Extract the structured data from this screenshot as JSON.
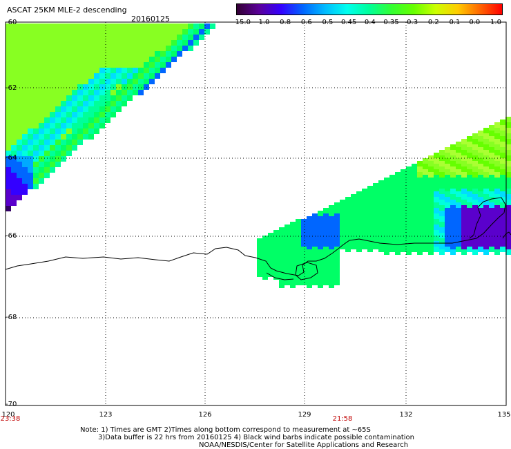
{
  "header": {
    "title": "ASCAT 25KM MLE-2 descending",
    "date": "20160125"
  },
  "colorbar": {
    "labels": [
      "-15.0",
      "-1.0",
      "-0.8",
      "-0.6",
      "-0.5",
      "-0.45",
      "-0.4",
      "-0.35",
      "-0.3",
      "-0.2",
      "-0.1",
      "0.0",
      "1.0"
    ],
    "colors": [
      "#330033",
      "#5a0099",
      "#3300ff",
      "#0066ff",
      "#00bbff",
      "#00ffee",
      "#00ff99",
      "#33ff33",
      "#66ff00",
      "#ccff00",
      "#ffcc00",
      "#ff6600",
      "#ff0000"
    ]
  },
  "axes": {
    "lat_labels": [
      "-60",
      "-62",
      "-64",
      "-66",
      "-68",
      "-70"
    ],
    "lon_labels": [
      "120",
      "123",
      "126",
      "129",
      "132",
      "135"
    ],
    "lat_range": [
      -70,
      -60
    ],
    "lon_range": [
      120,
      135
    ],
    "grid": "dotted"
  },
  "times": [
    "23:38",
    "21:58"
  ],
  "notes": [
    "Note: 1) Times are GMT 2)Times along bottom correspond to measurement at ~65S",
    "3)Data buffer is 22 hrs from 20160125 4) Black wind barbs indicate possible contamination",
    "NOAA/NESDIS/Center for Satellite Applications and Research"
  ]
}
